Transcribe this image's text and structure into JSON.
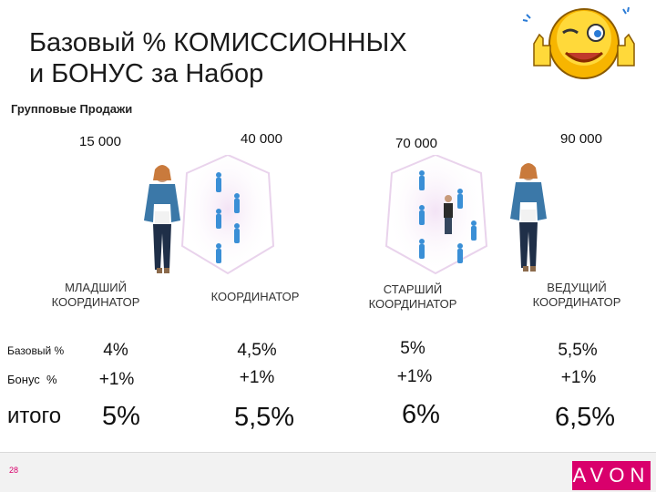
{
  "slide": {
    "title_line1": "Базовый % КОМИССИОННЫХ",
    "title_line2": "и БОНУС за Набор",
    "subtitle": "Групповые Продажи",
    "page_number": "28",
    "brand": "AVON"
  },
  "tiers": [
    {
      "amount": "15 000",
      "role_line1": "МЛАДШИЙ",
      "role_line2": "КООРДИНАТОР",
      "base": "4%",
      "bonus": "+1%",
      "total": "5%"
    },
    {
      "amount": "40 000",
      "role_line1": "КООРДИНАТОР",
      "role_line2": "",
      "base": "4,5%",
      "bonus": "+1%",
      "total": "5,5%"
    },
    {
      "amount": "70 000",
      "role_line1": "СТАРШИЙ",
      "role_line2": "КООРДИНАТОР",
      "base": "5%",
      "bonus": "+1%",
      "total": "6%"
    },
    {
      "amount": "90 000",
      "role_line1": "ВЕДУЩИЙ",
      "role_line2": "КООРДИНАТОР",
      "base": "5,5%",
      "bonus": "+1%",
      "total": "6,5%"
    }
  ],
  "rows": {
    "base_label": "Базовый %",
    "bonus_label": "Бонус  %",
    "total_label": "итого"
  },
  "colors": {
    "accent": "#d9006c",
    "figure_blue": "#3a8fd6",
    "glow": "#e3c8e8"
  }
}
